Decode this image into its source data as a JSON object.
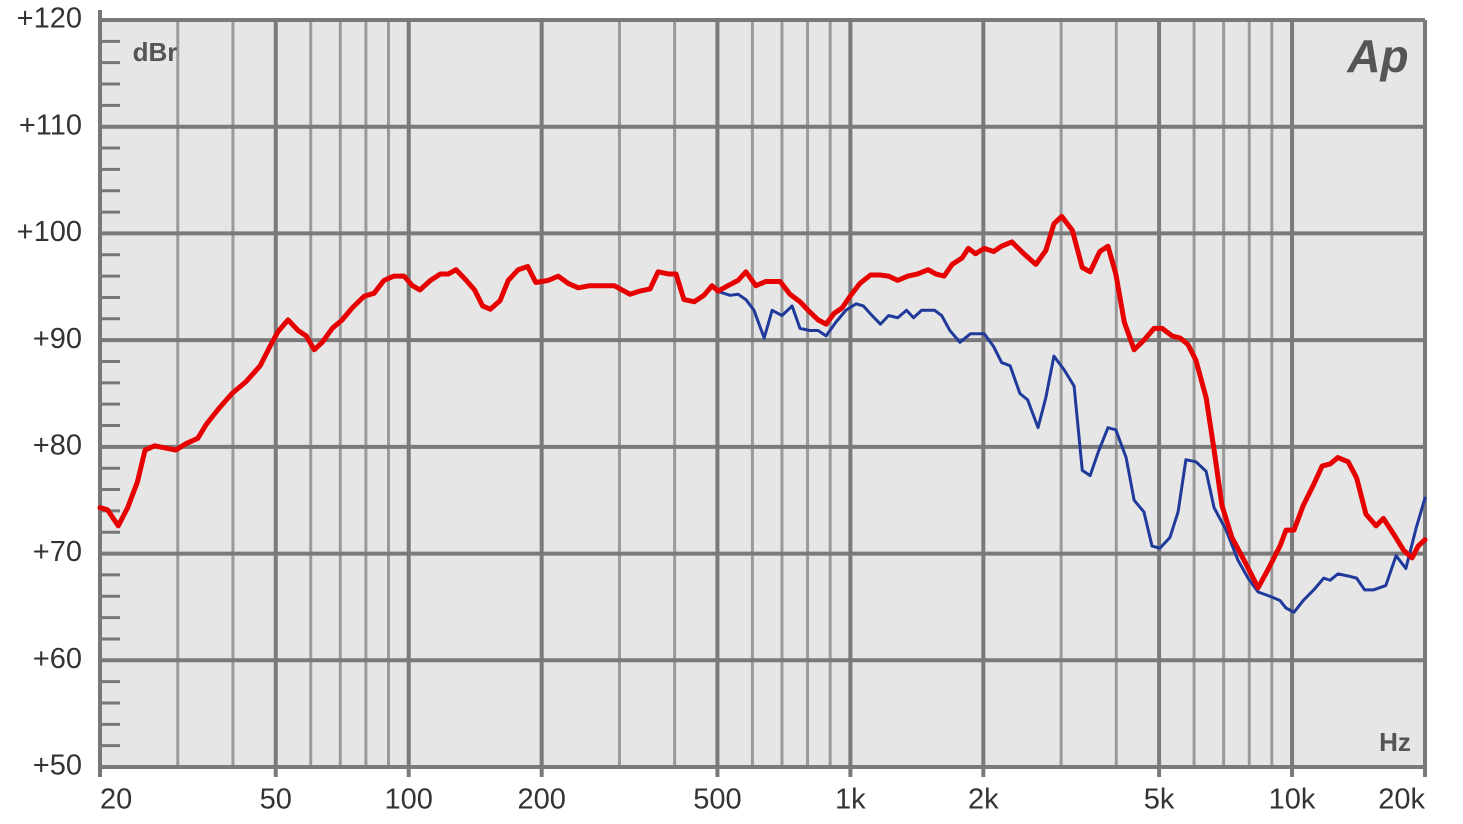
{
  "chart_data": {
    "type": "line",
    "y_unit_label": "dBr",
    "x_unit_label": "Hz",
    "logo": "Ap",
    "xscale": "log",
    "grid": true,
    "xlim": [
      20,
      20000
    ],
    "ylim": [
      50,
      120
    ],
    "xticks": [
      20,
      50,
      100,
      200,
      500,
      {
        "value": 1000,
        "label": "1k"
      },
      {
        "value": 2000,
        "label": "2k"
      },
      {
        "value": 5000,
        "label": "5k"
      },
      {
        "value": 10000,
        "label": "10k"
      },
      {
        "value": 20000,
        "label": "20k"
      }
    ],
    "xminorticks": [
      30,
      40,
      60,
      70,
      80,
      90,
      300,
      400,
      600,
      700,
      800,
      900,
      3000,
      4000,
      6000,
      7000,
      8000,
      9000
    ],
    "yticks": [
      {
        "value": 50,
        "label": "+50"
      },
      {
        "value": 60,
        "label": "+60"
      },
      {
        "value": 70,
        "label": "+70"
      },
      {
        "value": 80,
        "label": "+80"
      },
      {
        "value": 90,
        "label": "+90"
      },
      {
        "value": 100,
        "label": "+100"
      },
      {
        "value": 110,
        "label": "+110"
      },
      {
        "value": 120,
        "label": "+120"
      }
    ],
    "yminorticks": [
      52,
      54,
      56,
      58,
      62,
      64,
      66,
      68,
      72,
      74,
      76,
      78,
      82,
      84,
      86,
      88,
      92,
      94,
      96,
      98,
      102,
      104,
      106,
      108,
      112,
      114,
      116,
      118
    ],
    "series": [
      {
        "color": "#1f3a9a",
        "width": 3,
        "x": [
          507,
          534,
          557,
          580,
          605,
          638,
          665,
          700,
          738,
          769,
          810,
          845,
          881,
          928,
          977,
          1030,
          1070,
          1120,
          1170,
          1220,
          1280,
          1340,
          1390,
          1450,
          1550,
          1610,
          1680,
          1770,
          1870,
          2010,
          2110,
          2200,
          2300,
          2420,
          2520,
          2660,
          2770,
          2890,
          3050,
          3210,
          3350,
          3490,
          3640,
          3830,
          3990,
          4210,
          4390,
          4620,
          4820,
          5020,
          5290,
          5520,
          5750,
          6060,
          6390,
          6660,
          7090,
          7540,
          7950,
          8380,
          8910,
          9390,
          9690,
          10100,
          10600,
          11200,
          11800,
          12200,
          12700,
          13400,
          14000,
          14600,
          15300,
          16300,
          17200,
          18100,
          19100,
          20000
        ],
        "values": [
          94.5,
          94.2,
          94.3,
          93.8,
          92.8,
          90.2,
          92.8,
          92.3,
          93.2,
          91.1,
          90.9,
          90.9,
          90.4,
          91.7,
          92.8,
          93.4,
          93.2,
          92.3,
          91.5,
          92.3,
          92.1,
          92.8,
          92.1,
          92.8,
          92.8,
          92.3,
          90.9,
          89.8,
          90.6,
          90.6,
          89.4,
          87.9,
          87.6,
          85.0,
          84.4,
          81.8,
          84.6,
          88.5,
          87.2,
          85.7,
          77.8,
          77.3,
          79.5,
          81.8,
          81.6,
          79.0,
          75.0,
          73.9,
          70.7,
          70.5,
          71.5,
          73.9,
          78.8,
          78.6,
          77.7,
          74.3,
          72.2,
          69.4,
          67.7,
          66.4,
          66.0,
          65.6,
          64.9,
          64.5,
          65.6,
          66.6,
          67.7,
          67.5,
          68.1,
          67.9,
          67.7,
          66.6,
          66.6,
          67.0,
          69.8,
          68.6,
          72.4,
          75.2
        ]
      },
      {
        "color": "#e60000",
        "width": 5,
        "x": [
          20,
          20.8,
          22,
          23.1,
          24.3,
          25.3,
          26.6,
          28.1,
          29.7,
          31.3,
          33.3,
          34.8,
          37,
          39.8,
          42.8,
          46.1,
          48.5,
          50.6,
          53.3,
          56.2,
          58.6,
          61.1,
          63.7,
          67.1,
          70.7,
          74.4,
          79.2,
          83.5,
          87.9,
          92.6,
          97.6,
          102,
          106,
          112,
          118,
          123,
          128,
          135,
          141,
          147,
          153,
          161,
          168,
          177,
          186,
          194,
          207,
          218,
          230,
          242,
          257,
          274,
          292,
          317,
          334,
          352,
          367,
          387,
          403,
          420,
          443,
          466,
          486,
          502,
          528,
          557,
          580,
          611,
          644,
          693,
          730,
          769,
          802,
          845,
          881,
          918,
          957,
          998,
          1050,
          1110,
          1170,
          1220,
          1280,
          1350,
          1420,
          1500,
          1560,
          1630,
          1700,
          1790,
          1850,
          1920,
          2010,
          2110,
          2200,
          2320,
          2470,
          2630,
          2770,
          2890,
          3010,
          3180,
          3350,
          3490,
          3670,
          3830,
          3990,
          4170,
          4390,
          4620,
          4870,
          5080,
          5350,
          5580,
          5810,
          6060,
          6390,
          6660,
          6940,
          7310,
          7780,
          8380,
          8820,
          9390,
          9690,
          10100,
          10600,
          11200,
          11700,
          12200,
          12700,
          13400,
          14000,
          14700,
          15500,
          16100,
          17000,
          17900,
          18700,
          19300,
          20000
        ],
        "values": [
          74.3,
          74.1,
          72.6,
          74.3,
          76.7,
          79.7,
          80.1,
          79.9,
          79.7,
          80.3,
          80.8,
          82.1,
          83.5,
          85.0,
          86.1,
          87.6,
          89.4,
          90.8,
          91.9,
          90.9,
          90.4,
          89.1,
          89.8,
          91.1,
          91.9,
          93.0,
          94.1,
          94.4,
          95.6,
          96.0,
          96.0,
          95.1,
          94.7,
          95.6,
          96.2,
          96.2,
          96.6,
          95.6,
          94.7,
          93.2,
          92.9,
          93.7,
          95.6,
          96.6,
          96.9,
          95.4,
          95.6,
          96.0,
          95.3,
          94.9,
          95.1,
          95.1,
          95.1,
          94.3,
          94.6,
          94.8,
          96.4,
          96.2,
          96.2,
          93.8,
          93.6,
          94.2,
          95.1,
          94.6,
          95.1,
          95.6,
          96.4,
          95.1,
          95.5,
          95.5,
          94.3,
          93.6,
          92.8,
          91.9,
          91.5,
          92.5,
          93.0,
          94.1,
          95.3,
          96.1,
          96.1,
          96.0,
          95.6,
          96.0,
          96.2,
          96.6,
          96.2,
          96.0,
          97.1,
          97.7,
          98.6,
          98.1,
          98.6,
          98.3,
          98.8,
          99.2,
          98.1,
          97.1,
          98.4,
          100.9,
          101.6,
          100.3,
          96.8,
          96.4,
          98.3,
          98.8,
          96.2,
          91.7,
          89.1,
          90.0,
          91.1,
          91.1,
          90.4,
          90.2,
          89.6,
          88.1,
          84.6,
          79.7,
          74.5,
          71.5,
          69.4,
          66.8,
          68.5,
          70.7,
          72.2,
          72.2,
          74.5,
          76.5,
          78.2,
          78.4,
          79.0,
          78.6,
          77.1,
          73.7,
          72.6,
          73.3,
          71.8,
          70.3,
          69.6,
          70.7,
          71.3
        ]
      }
    ]
  }
}
